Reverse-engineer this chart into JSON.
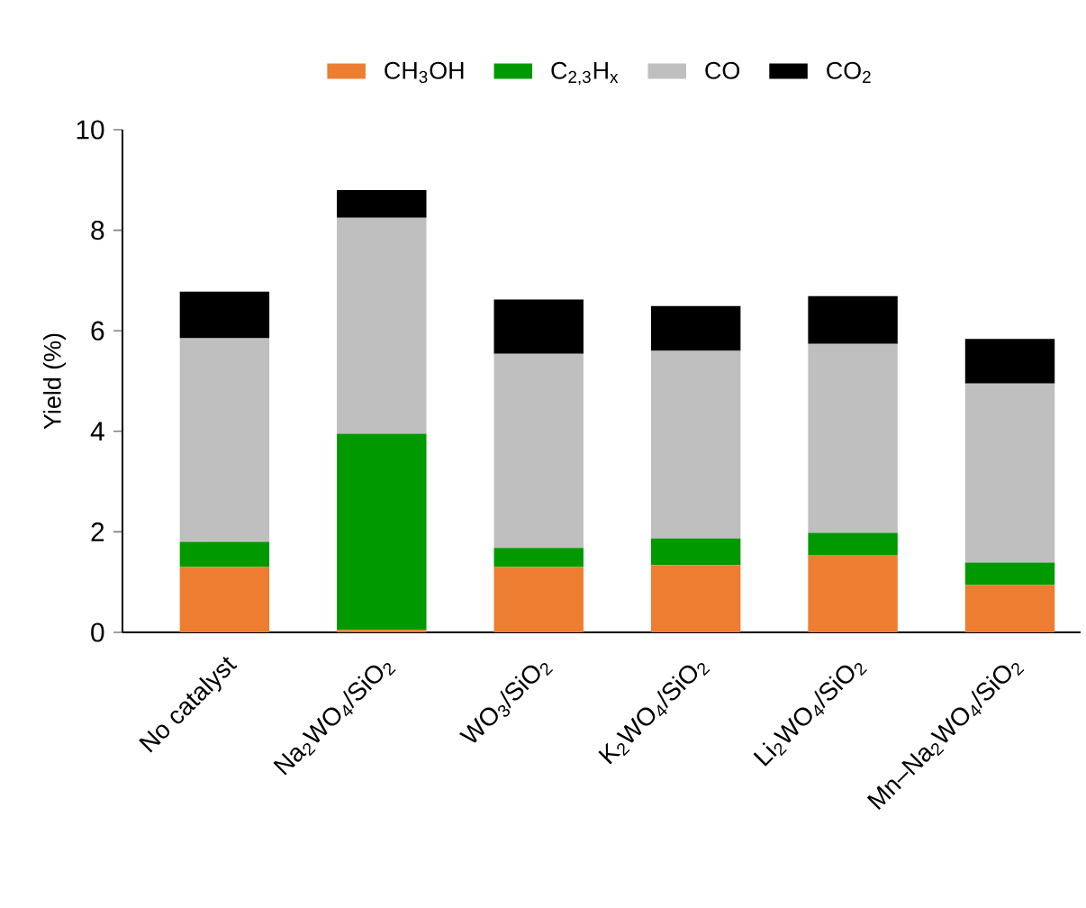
{
  "chart_data": {
    "type": "bar",
    "stacked": true,
    "ylabel": "Yield (%)",
    "categories": [
      "No catalyst",
      "Na$_{2}$WO$_{4}$/SiO$_{2}$",
      "WO$_{3}$/SiO$_{2}$",
      "K$_{2}$WO$_{4}$/SiO$_{2}$",
      "Li$_{2}$WO$_{4}$/SiO$_{2}$",
      "Mn–Na$_{2}$WO$_{4}$/SiO$_{2}$"
    ],
    "series": [
      {
        "name": "CH$_{3}$OH",
        "color": "#ed7d31",
        "values": [
          1.3,
          0.05,
          1.3,
          1.34,
          1.54,
          0.94
        ]
      },
      {
        "name": "C$_{2,3}$H$_{x}$",
        "color": "#009a00",
        "values": [
          0.5,
          3.9,
          0.38,
          0.53,
          0.44,
          0.45
        ]
      },
      {
        "name": "CO",
        "color": "#bfbfbf",
        "values": [
          4.05,
          4.3,
          3.86,
          3.73,
          3.76,
          3.56
        ]
      },
      {
        "name": "CO$_{2}$",
        "color": "#000000",
        "values": [
          0.93,
          0.55,
          1.08,
          0.89,
          0.95,
          0.89
        ]
      }
    ],
    "ylim": [
      0,
      10
    ],
    "yticks": [
      0,
      2,
      4,
      6,
      8,
      10
    ],
    "legend": "top",
    "grid": false
  }
}
